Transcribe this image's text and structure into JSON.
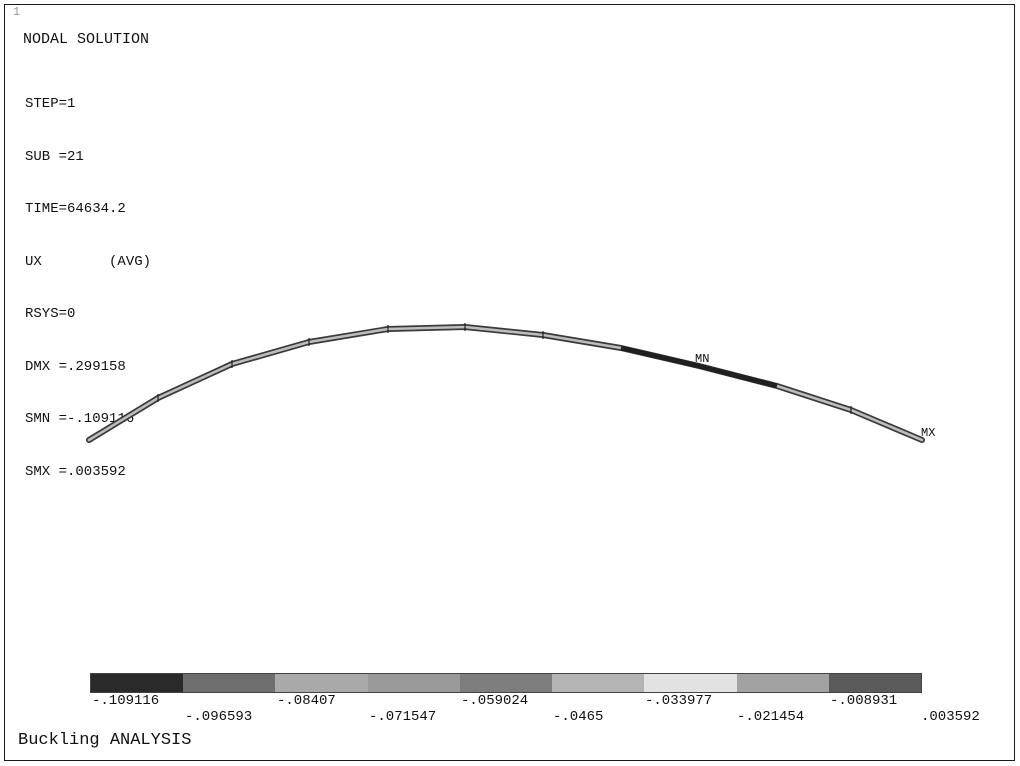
{
  "window_number": "1",
  "title": "NODAL SOLUTION",
  "info_lines": [
    "STEP=1",
    "SUB =21",
    "TIME=64634.2",
    "UX        (AVG)",
    "RSYS=0",
    "DMX =.299158",
    "SMN =-.109116",
    "SMX =.003592"
  ],
  "markers": {
    "min": "MN",
    "max": "MX"
  },
  "legend": {
    "colors": [
      "#2a2a2a",
      "#6e6e6e",
      "#a9a9a9",
      "#9a9a9a",
      "#7d7d7d",
      "#b4b4b4",
      "#e2e2e2",
      "#a2a2a2",
      "#5a5a5a"
    ],
    "labels_top": [
      "-.109116",
      "-.08407",
      "-.059024",
      "-.033977",
      "-.008931"
    ],
    "labels_bottom": [
      "-.096593",
      "-.071547",
      "-.0465",
      "-.021454",
      ".003592"
    ]
  },
  "footer": "Buckling ANALYSIS",
  "chart_data": {
    "type": "contour",
    "quantity": "UX",
    "min_value": -0.109116,
    "max_value": 0.003592,
    "levels": [
      -0.109116,
      -0.096593,
      -0.08407,
      -0.071547,
      -0.059024,
      -0.0465,
      -0.033977,
      -0.021454,
      -0.008931,
      0.003592
    ]
  }
}
